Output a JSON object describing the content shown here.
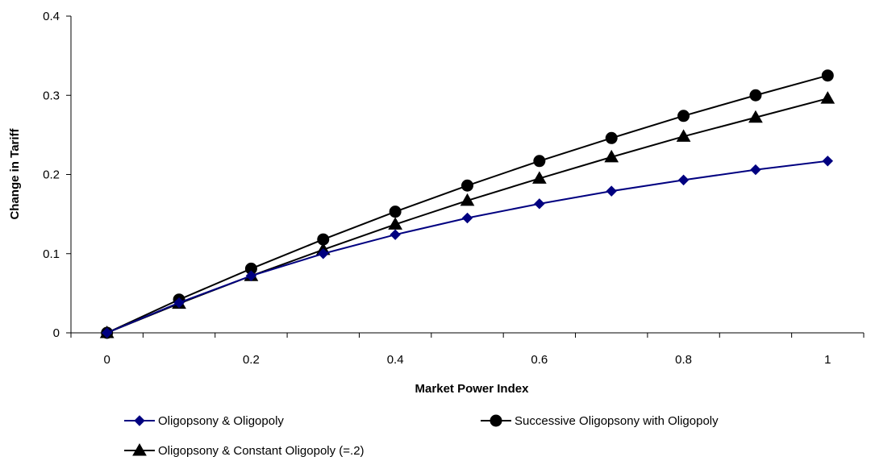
{
  "chart_data": {
    "type": "line",
    "xlabel": "Market Power Index",
    "ylabel": "Change in Tariff",
    "xlim": [
      -0.05,
      1.05
    ],
    "ylim": [
      0,
      0.4
    ],
    "x_ticks": [
      "0",
      "0.2",
      "0.4",
      "0.6",
      "0.8",
      "1"
    ],
    "y_ticks": [
      "0",
      "0.1",
      "0.2",
      "0.3",
      "0.4"
    ],
    "x": [
      0,
      0.1,
      0.2,
      0.3,
      0.4,
      0.5,
      0.6,
      0.7,
      0.8,
      0.9,
      1.0
    ],
    "legend_position": "bottom",
    "series": [
      {
        "name": "Oligopsony & Oligopoly",
        "color": "#000080",
        "marker": "diamond",
        "values": [
          0,
          0.038,
          0.072,
          0.1,
          0.124,
          0.145,
          0.163,
          0.179,
          0.193,
          0.206,
          0.217
        ]
      },
      {
        "name": "Successive Oligopsony with Oligopoly",
        "color": "#000000",
        "marker": "circle",
        "values": [
          0,
          0.042,
          0.081,
          0.118,
          0.153,
          0.186,
          0.217,
          0.246,
          0.274,
          0.3,
          0.325
        ]
      },
      {
        "name": "Oligopsony & Constant Oligopoly (=.2)",
        "color": "#000000",
        "marker": "triangle",
        "values": [
          0,
          0.037,
          0.072,
          0.105,
          0.137,
          0.167,
          0.195,
          0.222,
          0.248,
          0.272,
          0.296
        ]
      }
    ]
  }
}
